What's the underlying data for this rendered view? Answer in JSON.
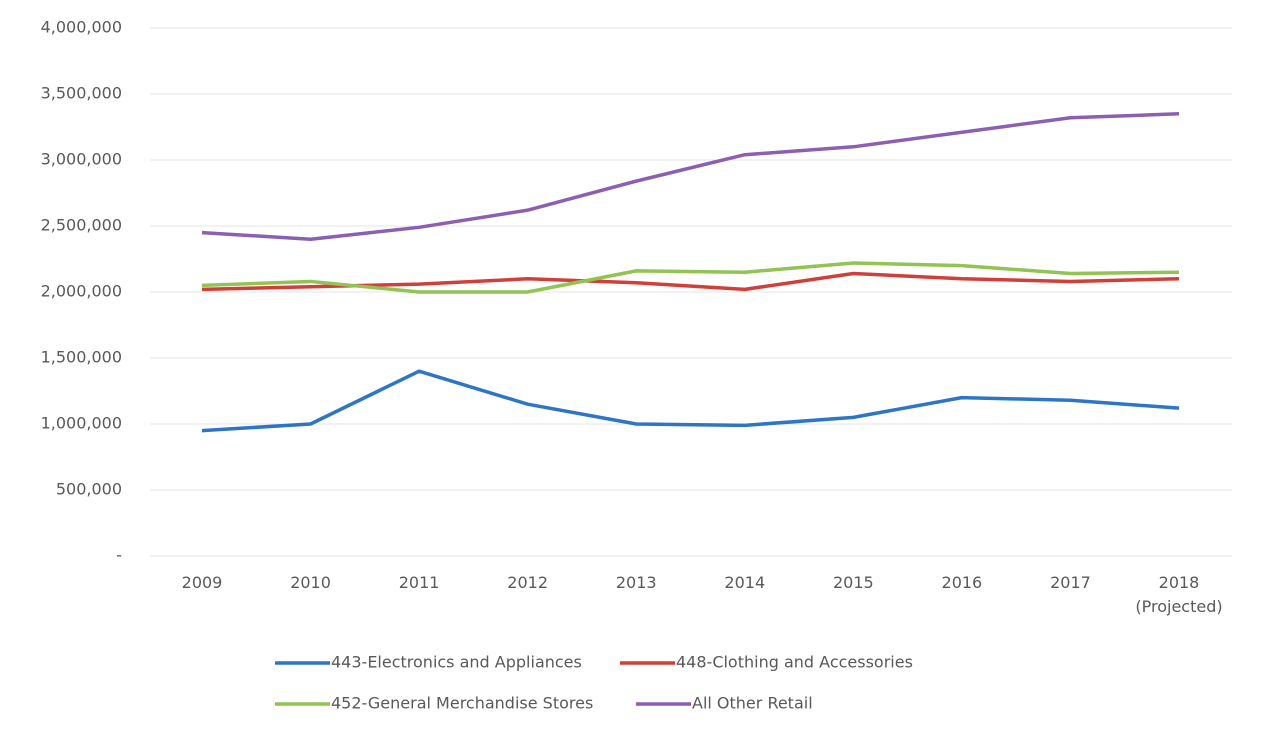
{
  "chart_data": {
    "type": "line",
    "categories": [
      "2009",
      "2010",
      "2011",
      "2012",
      "2013",
      "2014",
      "2015",
      "2016",
      "2017",
      "2018\n(Projected)"
    ],
    "series": [
      {
        "name": "443-Electronics and Appliances",
        "color": "#2e75c6",
        "values": [
          950000,
          1000000,
          1400000,
          1150000,
          1000000,
          990000,
          1050000,
          1200000,
          1180000,
          1120000
        ]
      },
      {
        "name": "448-Clothing and Accessories",
        "color": "#d23f3a",
        "values": [
          2020000,
          2040000,
          2060000,
          2100000,
          2070000,
          2020000,
          2140000,
          2100000,
          2080000,
          2100000
        ]
      },
      {
        "name": "452-General Merchandise Stores",
        "color": "#92c353",
        "values": [
          2050000,
          2080000,
          2000000,
          2000000,
          2160000,
          2150000,
          2220000,
          2200000,
          2140000,
          2150000
        ]
      },
      {
        "name": "All Other Retail",
        "color": "#8c5fb3",
        "values": [
          2450000,
          2400000,
          2490000,
          2620000,
          2840000,
          3040000,
          3100000,
          3210000,
          3320000,
          3350000
        ]
      }
    ],
    "ylim": [
      0,
      4000000
    ],
    "yticks": [
      {
        "value": 0,
        "label": "-"
      },
      {
        "value": 500000,
        "label": "500,000"
      },
      {
        "value": 1000000,
        "label": "1,000,000"
      },
      {
        "value": 1500000,
        "label": "1,500,000"
      },
      {
        "value": 2000000,
        "label": "2,000,000"
      },
      {
        "value": 2500000,
        "label": "2,500,000"
      },
      {
        "value": 3000000,
        "label": "3,000,000"
      },
      {
        "value": 3500000,
        "label": "3,500,000"
      },
      {
        "value": 4000000,
        "label": "4,000,000"
      }
    ],
    "grid": true,
    "legend": "bottom"
  }
}
